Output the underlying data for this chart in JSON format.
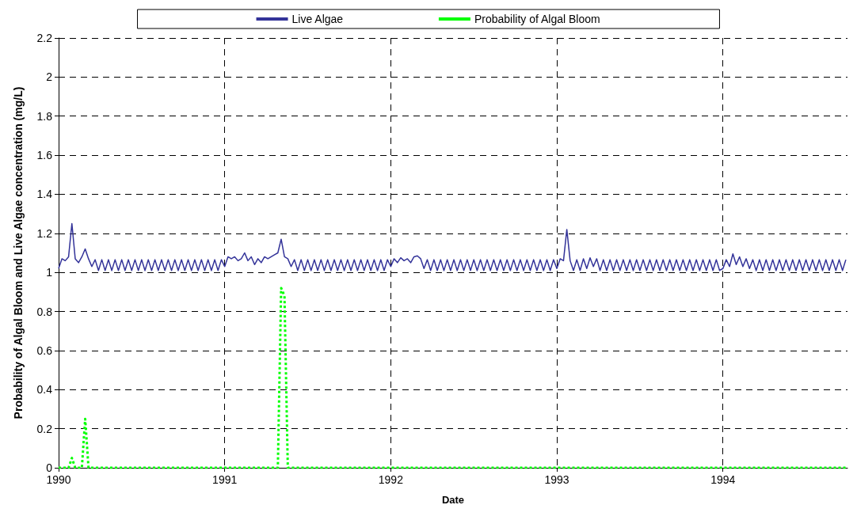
{
  "chart_data": {
    "type": "line",
    "xlabel": "Date",
    "ylabel": "Probability of Algal Bloom and Live Algae concentration (mg/L)",
    "xlim": [
      1990,
      1994.75
    ],
    "xticks": [
      1990,
      1991,
      1992,
      1993,
      1994
    ],
    "ylim": [
      0,
      2.2
    ],
    "yticks": [
      0,
      0.2,
      0.4,
      0.6,
      0.8,
      1,
      1.2,
      1.4,
      1.6,
      1.8,
      2,
      2.2
    ],
    "grid": true,
    "legend": "top",
    "marker": "none",
    "x": [
      1990.0,
      1990.02,
      1990.04,
      1990.06,
      1990.08,
      1990.1,
      1990.12,
      1990.14,
      1990.16,
      1990.18,
      1990.2,
      1990.22,
      1990.24,
      1990.26,
      1990.28,
      1990.3,
      1990.32,
      1990.34,
      1990.36,
      1990.38,
      1990.4,
      1990.42,
      1990.44,
      1990.46,
      1990.48,
      1990.5,
      1990.52,
      1990.54,
      1990.56,
      1990.58,
      1990.6,
      1990.62,
      1990.64,
      1990.66,
      1990.68,
      1990.7,
      1990.72,
      1990.74,
      1990.76,
      1990.78,
      1990.8,
      1990.82,
      1990.84,
      1990.86,
      1990.88,
      1990.9,
      1990.92,
      1990.94,
      1990.96,
      1990.98,
      1991.0,
      1991.02,
      1991.04,
      1991.06,
      1991.08,
      1991.1,
      1991.12,
      1991.14,
      1991.16,
      1991.18,
      1991.2,
      1991.22,
      1991.24,
      1991.26,
      1991.28,
      1991.3,
      1991.32,
      1991.34,
      1991.36,
      1991.38,
      1991.4,
      1991.42,
      1991.44,
      1991.46,
      1991.48,
      1991.5,
      1991.52,
      1991.54,
      1991.56,
      1991.58,
      1991.6,
      1991.62,
      1991.64,
      1991.66,
      1991.68,
      1991.7,
      1991.72,
      1991.74,
      1991.76,
      1991.78,
      1991.8,
      1991.82,
      1991.84,
      1991.86,
      1991.88,
      1991.9,
      1991.92,
      1991.94,
      1991.96,
      1991.98,
      1992.0,
      1992.02,
      1992.04,
      1992.06,
      1992.08,
      1992.1,
      1992.12,
      1992.14,
      1992.16,
      1992.18,
      1992.2,
      1992.22,
      1992.24,
      1992.26,
      1992.28,
      1992.3,
      1992.32,
      1992.34,
      1992.36,
      1992.38,
      1992.4,
      1992.42,
      1992.44,
      1992.46,
      1992.48,
      1992.5,
      1992.52,
      1992.54,
      1992.56,
      1992.58,
      1992.6,
      1992.62,
      1992.64,
      1992.66,
      1992.68,
      1992.7,
      1992.72,
      1992.74,
      1992.76,
      1992.78,
      1992.8,
      1992.82,
      1992.84,
      1992.86,
      1992.88,
      1992.9,
      1992.92,
      1992.94,
      1992.96,
      1992.98,
      1993.0,
      1993.02,
      1993.04,
      1993.06,
      1993.08,
      1993.1,
      1993.12,
      1993.14,
      1993.16,
      1993.18,
      1993.2,
      1993.22,
      1993.24,
      1993.26,
      1993.28,
      1993.3,
      1993.32,
      1993.34,
      1993.36,
      1993.38,
      1993.4,
      1993.42,
      1993.44,
      1993.46,
      1993.48,
      1993.5,
      1993.52,
      1993.54,
      1993.56,
      1993.58,
      1993.6,
      1993.62,
      1993.64,
      1993.66,
      1993.68,
      1993.7,
      1993.72,
      1993.74,
      1993.76,
      1993.78,
      1993.8,
      1993.82,
      1993.84,
      1993.86,
      1993.88,
      1993.9,
      1993.92,
      1993.94,
      1993.96,
      1993.98,
      1994.0,
      1994.02,
      1994.04,
      1994.06,
      1994.08,
      1994.1,
      1994.12,
      1994.14,
      1994.16,
      1994.18,
      1994.2,
      1994.22,
      1994.24,
      1994.26,
      1994.28,
      1994.3,
      1994.32,
      1994.34,
      1994.36,
      1994.38,
      1994.4,
      1994.42,
      1994.44,
      1994.46,
      1994.48,
      1994.5,
      1994.52,
      1994.54,
      1994.56,
      1994.58,
      1994.6,
      1994.62,
      1994.64,
      1994.66,
      1994.68,
      1994.7,
      1994.72,
      1994.74
    ],
    "series": [
      {
        "name": "Live Algae",
        "color": "#333399",
        "line_style": "solid",
        "values": [
          1.02,
          1.07,
          1.06,
          1.08,
          1.25,
          1.07,
          1.05,
          1.08,
          1.12,
          1.07,
          1.03,
          1.065,
          1.01,
          1.065,
          1.01,
          1.065,
          1.01,
          1.065,
          1.01,
          1.065,
          1.01,
          1.065,
          1.01,
          1.065,
          1.01,
          1.065,
          1.01,
          1.065,
          1.01,
          1.065,
          1.01,
          1.065,
          1.01,
          1.065,
          1.01,
          1.065,
          1.01,
          1.065,
          1.01,
          1.065,
          1.01,
          1.065,
          1.01,
          1.065,
          1.01,
          1.065,
          1.01,
          1.065,
          1.01,
          1.065,
          1.03,
          1.08,
          1.07,
          1.08,
          1.06,
          1.07,
          1.1,
          1.06,
          1.08,
          1.04,
          1.07,
          1.05,
          1.08,
          1.07,
          1.08,
          1.09,
          1.1,
          1.17,
          1.08,
          1.07,
          1.03,
          1.065,
          1.01,
          1.065,
          1.01,
          1.065,
          1.01,
          1.065,
          1.01,
          1.065,
          1.01,
          1.065,
          1.01,
          1.065,
          1.01,
          1.065,
          1.01,
          1.065,
          1.01,
          1.065,
          1.01,
          1.065,
          1.01,
          1.065,
          1.01,
          1.065,
          1.01,
          1.065,
          1.01,
          1.065,
          1.03,
          1.07,
          1.05,
          1.075,
          1.06,
          1.07,
          1.05,
          1.08,
          1.085,
          1.07,
          1.02,
          1.065,
          1.01,
          1.065,
          1.01,
          1.065,
          1.01,
          1.065,
          1.01,
          1.065,
          1.01,
          1.065,
          1.01,
          1.065,
          1.01,
          1.065,
          1.01,
          1.065,
          1.01,
          1.065,
          1.01,
          1.065,
          1.01,
          1.065,
          1.01,
          1.065,
          1.01,
          1.065,
          1.01,
          1.065,
          1.01,
          1.065,
          1.01,
          1.065,
          1.01,
          1.065,
          1.01,
          1.065,
          1.01,
          1.065,
          1.02,
          1.07,
          1.06,
          1.22,
          1.06,
          1.01,
          1.065,
          1.01,
          1.07,
          1.02,
          1.075,
          1.03,
          1.07,
          1.01,
          1.065,
          1.01,
          1.065,
          1.01,
          1.065,
          1.01,
          1.065,
          1.01,
          1.065,
          1.01,
          1.065,
          1.01,
          1.065,
          1.01,
          1.065,
          1.01,
          1.065,
          1.01,
          1.065,
          1.01,
          1.065,
          1.01,
          1.065,
          1.01,
          1.065,
          1.01,
          1.065,
          1.01,
          1.065,
          1.01,
          1.065,
          1.01,
          1.065,
          1.01,
          1.065,
          1.01,
          1.02,
          1.065,
          1.03,
          1.095,
          1.04,
          1.08,
          1.03,
          1.07,
          1.02,
          1.065,
          1.01,
          1.065,
          1.01,
          1.065,
          1.01,
          1.065,
          1.01,
          1.065,
          1.01,
          1.065,
          1.01,
          1.065,
          1.01,
          1.065,
          1.01,
          1.065,
          1.01,
          1.065,
          1.01,
          1.065,
          1.01,
          1.065,
          1.01,
          1.065,
          1.01,
          1.065,
          1.01,
          1.065
        ]
      },
      {
        "name": "Probability of Algal Bloom",
        "color": "#00ff00",
        "line_style": "dotted",
        "x": [
          1990,
          1990.06,
          1990.08,
          1990.1,
          1990.14,
          1990.16,
          1990.18,
          1991.32,
          1991.34,
          1991.36,
          1991.38,
          1994.74
        ],
        "values": [
          0,
          0,
          0.05,
          0,
          0,
          0.25,
          0,
          0,
          0.92,
          0.88,
          0,
          0
        ]
      }
    ]
  }
}
